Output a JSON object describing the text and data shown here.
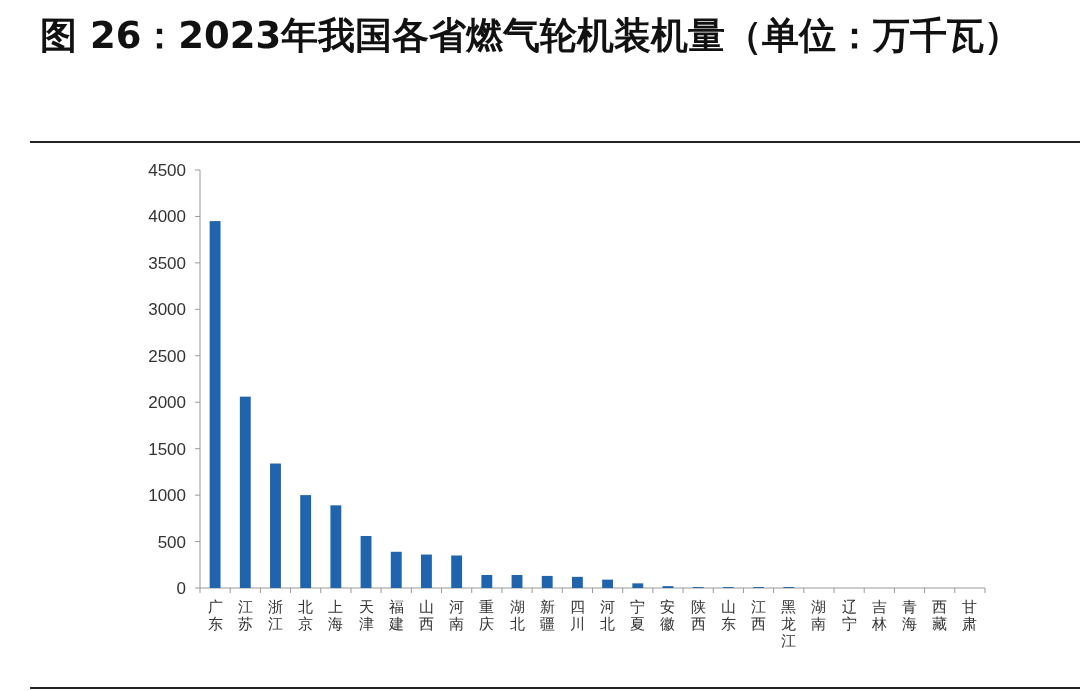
{
  "chart_data": {
    "type": "bar",
    "title": "图 26：2023年我国各省燃气轮机装机量（单位：万千瓦）",
    "categories": [
      "广东",
      "江苏",
      "浙江",
      "北京",
      "上海",
      "天津",
      "福建",
      "山西",
      "河南",
      "重庆",
      "湖北",
      "新疆",
      "四川",
      "河北",
      "宁夏",
      "安徽",
      "陕西",
      "山东",
      "江西",
      "黑龙江",
      "湖南",
      "辽宁",
      "吉林",
      "青海",
      "西藏",
      "甘肃"
    ],
    "values": [
      3950,
      2060,
      1340,
      1000,
      890,
      560,
      390,
      360,
      350,
      140,
      140,
      130,
      120,
      90,
      50,
      20,
      10,
      10,
      10,
      10,
      0,
      0,
      0,
      0,
      0,
      0
    ],
    "color": "#1f64ad",
    "ylim": [
      0,
      4500
    ],
    "yticks": [
      0,
      500,
      1000,
      1500,
      2000,
      2500,
      3000,
      3500,
      4000,
      4500
    ],
    "grid": false
  }
}
